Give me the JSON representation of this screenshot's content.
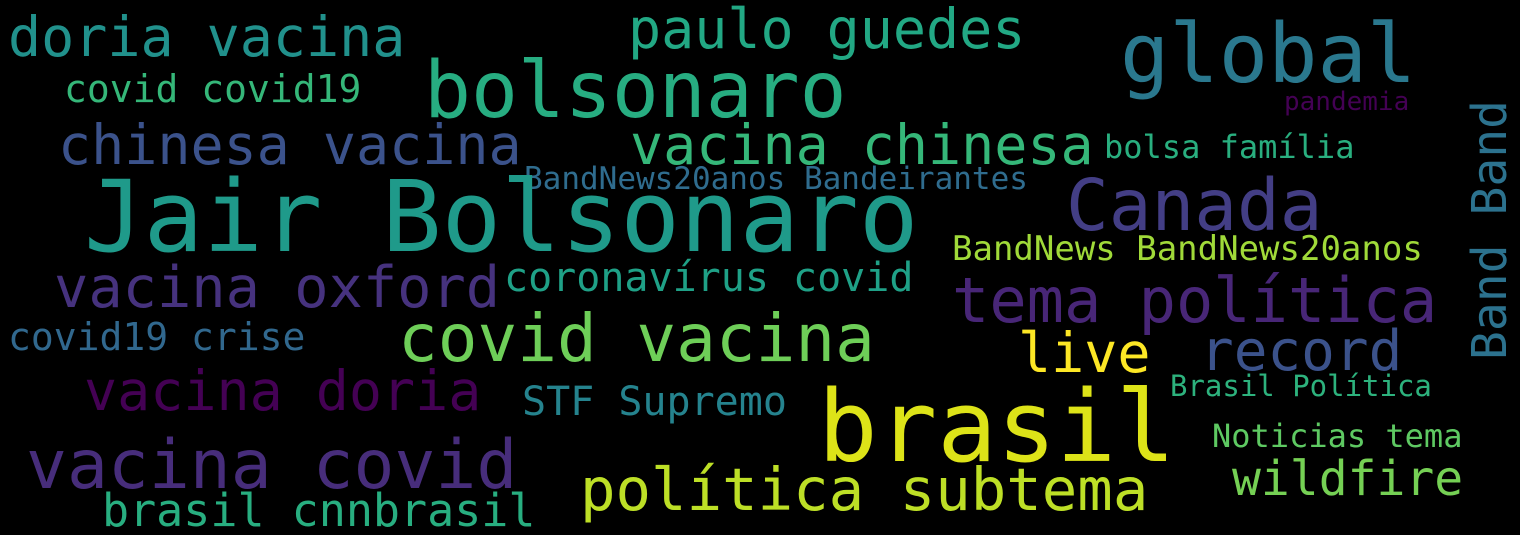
{
  "words": [
    {
      "id": "doria-vacina",
      "text": "doria vacina",
      "color": "#21918c"
    },
    {
      "id": "paulo-guedes",
      "text": "paulo guedes",
      "color": "#22a884"
    },
    {
      "id": "global",
      "text": "global",
      "color": "#2a788e"
    },
    {
      "id": "covid-covid19",
      "text": "covid covid19",
      "color": "#35b779"
    },
    {
      "id": "bolsonaro",
      "text": "bolsonaro",
      "color": "#27ad81"
    },
    {
      "id": "pandemia",
      "text": "pandemia",
      "color": "#440154"
    },
    {
      "id": "band-band",
      "text": "Band Band",
      "color": "#2c728e"
    },
    {
      "id": "chinesa-vacina",
      "text": "chinesa vacina",
      "color": "#3b528b"
    },
    {
      "id": "vacina-chinesa",
      "text": "vacina chinesa",
      "color": "#35b779"
    },
    {
      "id": "bolsa-familia",
      "text": "bolsa família",
      "color": "#29af7f"
    },
    {
      "id": "bandnews20anos-bandeirantes",
      "text": "BandNews20anos Bandeirantes",
      "color": "#2f6c8e"
    },
    {
      "id": "jair-bolsonaro",
      "text": "Jair Bolsonaro",
      "color": "#1f9a8a"
    },
    {
      "id": "canada",
      "text": "Canada",
      "color": "#433e85"
    },
    {
      "id": "bandnews-bandnews20anos",
      "text": "BandNews BandNews20anos",
      "color": "#a0da39"
    },
    {
      "id": "vacina-oxford",
      "text": "vacina oxford",
      "color": "#46327e"
    },
    {
      "id": "coronavirus-covid",
      "text": "coronavírus covid",
      "color": "#1fa187"
    },
    {
      "id": "tema-politica",
      "text": "tema política",
      "color": "#482677"
    },
    {
      "id": "covid19-crise",
      "text": "covid19 crise",
      "color": "#31688e"
    },
    {
      "id": "covid-vacina",
      "text": "covid vacina",
      "color": "#6ece58"
    },
    {
      "id": "live",
      "text": "live",
      "color": "#fde725"
    },
    {
      "id": "record",
      "text": "record",
      "color": "#3b528b"
    },
    {
      "id": "vacina-doria",
      "text": "vacina doria",
      "color": "#440154"
    },
    {
      "id": "stf-supremo",
      "text": "STF Supremo",
      "color": "#25838e"
    },
    {
      "id": "brasil",
      "text": "brasil",
      "color": "#dde318"
    },
    {
      "id": "brasil-politica",
      "text": "Brasil Política",
      "color": "#2db27d"
    },
    {
      "id": "noticias-tema",
      "text": "Noticias tema",
      "color": "#5ec962"
    },
    {
      "id": "vacina-covid",
      "text": "vacina covid",
      "color": "#472d7b"
    },
    {
      "id": "wildfire",
      "text": "wildfire",
      "color": "#75d054"
    },
    {
      "id": "politica-subtema",
      "text": "política subtema",
      "color": "#bddf26"
    },
    {
      "id": "brasil-cnnbrasil",
      "text": "brasil cnnbrasil",
      "color": "#28ae80"
    }
  ]
}
